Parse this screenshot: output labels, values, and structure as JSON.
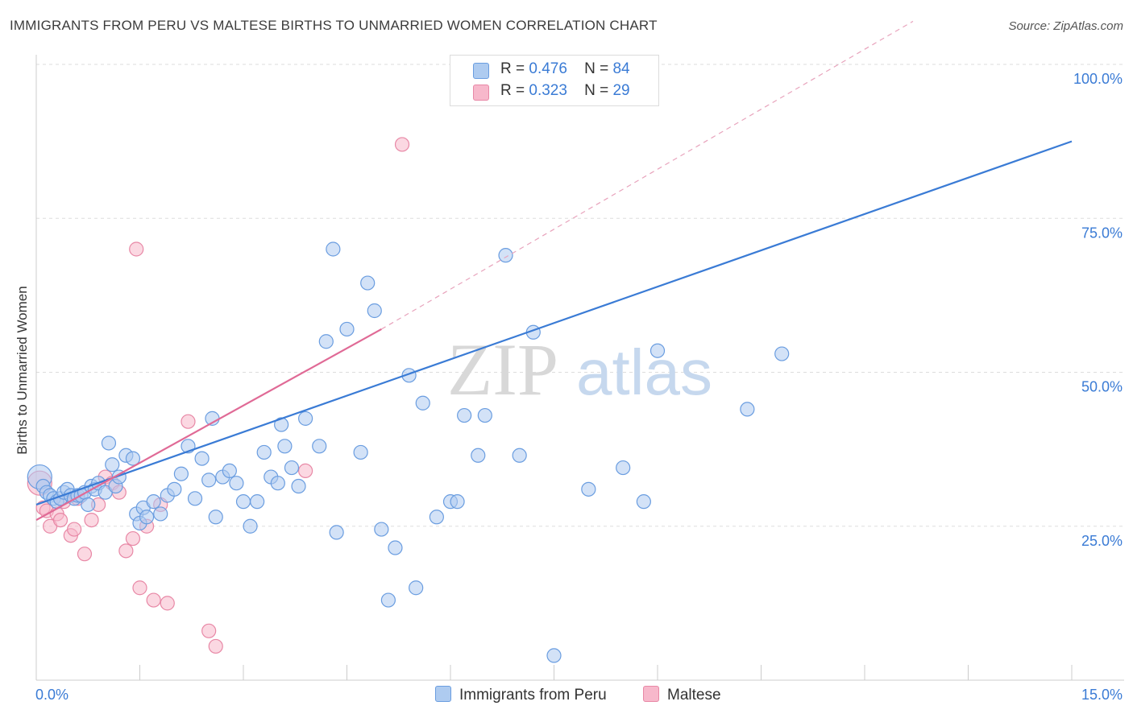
{
  "title": "IMMIGRANTS FROM PERU VS MALTESE BIRTHS TO UNMARRIED WOMEN CORRELATION CHART",
  "source": "Source: ZipAtlas.com",
  "watermark": {
    "part1": "ZIP",
    "part2": "atlas"
  },
  "legend": {
    "rows": [
      {
        "r_label": "R =",
        "r_value": "0.476",
        "n_label": "N =",
        "n_value": "84"
      },
      {
        "r_label": "R =",
        "r_value": "0.323",
        "n_label": "N =",
        "n_value": "29"
      }
    ]
  },
  "bottom_legend": {
    "series1": "Immigrants from Peru",
    "series2": "Maltese"
  },
  "colors": {
    "blue_fill": "#aecbf0",
    "blue_stroke": "#6a9de0",
    "blue_line": "#3a7bd5",
    "pink_fill": "#f7b8cb",
    "pink_stroke": "#e888a6",
    "pink_line": "#e06a96",
    "grid": "#dddddd",
    "tick_text": "#3a7bd5"
  },
  "chart_data": {
    "type": "scatter",
    "title": "IMMIGRANTS FROM PERU VS MALTESE BIRTHS TO UNMARRIED WOMEN CORRELATION CHART",
    "xlabel": "",
    "ylabel": "Births to Unmarried Women",
    "xlim": [
      0,
      15
    ],
    "ylim": [
      0,
      100
    ],
    "x_tick_labels": [
      "0.0%",
      "15.0%"
    ],
    "y_ticks": [
      25,
      50,
      75,
      100
    ],
    "y_tick_labels": [
      "25.0%",
      "50.0%",
      "75.0%",
      "100.0%"
    ],
    "grid": true,
    "legend_position": "top-center",
    "series": [
      {
        "name": "Immigrants from Peru",
        "r": 0.476,
        "n": 84,
        "trend": {
          "x": [
            0,
            15
          ],
          "y": [
            28.5,
            87.5
          ]
        },
        "points": [
          [
            0.05,
            33.0
          ],
          [
            0.1,
            31.5
          ],
          [
            0.15,
            30.5
          ],
          [
            0.2,
            30.0
          ],
          [
            0.25,
            29.5
          ],
          [
            0.3,
            29.0
          ],
          [
            0.35,
            29.5
          ],
          [
            0.4,
            30.5
          ],
          [
            0.45,
            31.0
          ],
          [
            0.5,
            30.0
          ],
          [
            0.55,
            29.5
          ],
          [
            0.6,
            30.0
          ],
          [
            0.65,
            30.0
          ],
          [
            0.7,
            30.5
          ],
          [
            0.75,
            28.5
          ],
          [
            0.8,
            31.5
          ],
          [
            0.85,
            31.0
          ],
          [
            0.9,
            32.0
          ],
          [
            1.0,
            30.5
          ],
          [
            1.05,
            38.5
          ],
          [
            1.1,
            35.0
          ],
          [
            1.15,
            31.5
          ],
          [
            1.2,
            33.0
          ],
          [
            1.3,
            36.5
          ],
          [
            1.4,
            36.0
          ],
          [
            1.45,
            27.0
          ],
          [
            1.5,
            25.5
          ],
          [
            1.55,
            28.0
          ],
          [
            1.6,
            26.5
          ],
          [
            1.7,
            29.0
          ],
          [
            1.8,
            27.0
          ],
          [
            1.9,
            30.0
          ],
          [
            2.0,
            31.0
          ],
          [
            2.1,
            33.5
          ],
          [
            2.2,
            38.0
          ],
          [
            2.3,
            29.5
          ],
          [
            2.4,
            36.0
          ],
          [
            2.5,
            32.5
          ],
          [
            2.55,
            42.5
          ],
          [
            2.6,
            26.5
          ],
          [
            2.7,
            33.0
          ],
          [
            2.8,
            34.0
          ],
          [
            2.9,
            32.0
          ],
          [
            3.0,
            29.0
          ],
          [
            3.1,
            25.0
          ],
          [
            3.2,
            29.0
          ],
          [
            3.3,
            37.0
          ],
          [
            3.4,
            33.0
          ],
          [
            3.5,
            32.0
          ],
          [
            3.55,
            41.5
          ],
          [
            3.6,
            38.0
          ],
          [
            3.7,
            34.5
          ],
          [
            3.8,
            31.5
          ],
          [
            3.9,
            42.5
          ],
          [
            4.1,
            38.0
          ],
          [
            4.2,
            55.0
          ],
          [
            4.3,
            70.0
          ],
          [
            4.35,
            24.0
          ],
          [
            4.5,
            57.0
          ],
          [
            4.7,
            37.0
          ],
          [
            4.8,
            64.5
          ],
          [
            4.9,
            60.0
          ],
          [
            5.0,
            24.5
          ],
          [
            5.1,
            13.0
          ],
          [
            5.2,
            21.5
          ],
          [
            5.4,
            49.5
          ],
          [
            5.5,
            15.0
          ],
          [
            5.6,
            45.0
          ],
          [
            5.8,
            26.5
          ],
          [
            6.0,
            29.0
          ],
          [
            6.1,
            29.0
          ],
          [
            6.2,
            43.0
          ],
          [
            6.4,
            36.5
          ],
          [
            6.5,
            43.0
          ],
          [
            6.8,
            69.0
          ],
          [
            7.0,
            36.5
          ],
          [
            7.2,
            56.5
          ],
          [
            7.5,
            4.0
          ],
          [
            8.0,
            31.0
          ],
          [
            8.5,
            34.5
          ],
          [
            8.8,
            29.0
          ],
          [
            9.0,
            53.5
          ],
          [
            10.3,
            44.0
          ],
          [
            10.8,
            53.0
          ]
        ]
      },
      {
        "name": "Maltese",
        "r": 0.323,
        "n": 29,
        "trend": {
          "x": [
            0,
            5.0
          ],
          "y": [
            26.0,
            57.0
          ]
        },
        "trend_extension": {
          "x": [
            5.0,
            12.7
          ],
          "y": [
            57.0,
            107.0
          ]
        },
        "points": [
          [
            0.05,
            32.0
          ],
          [
            0.1,
            28.0
          ],
          [
            0.15,
            27.5
          ],
          [
            0.2,
            25.0
          ],
          [
            0.3,
            27.0
          ],
          [
            0.35,
            26.0
          ],
          [
            0.4,
            29.0
          ],
          [
            0.5,
            23.5
          ],
          [
            0.55,
            24.5
          ],
          [
            0.6,
            29.5
          ],
          [
            0.7,
            20.5
          ],
          [
            0.8,
            26.0
          ],
          [
            0.9,
            28.5
          ],
          [
            1.0,
            33.0
          ],
          [
            1.1,
            32.0
          ],
          [
            1.2,
            30.5
          ],
          [
            1.3,
            21.0
          ],
          [
            1.4,
            23.0
          ],
          [
            1.45,
            70.0
          ],
          [
            1.5,
            15.0
          ],
          [
            1.6,
            25.0
          ],
          [
            1.7,
            13.0
          ],
          [
            1.8,
            28.5
          ],
          [
            1.9,
            12.5
          ],
          [
            2.2,
            42.0
          ],
          [
            2.5,
            8.0
          ],
          [
            2.6,
            5.5
          ],
          [
            3.9,
            34.0
          ],
          [
            5.3,
            87.0
          ]
        ]
      }
    ]
  }
}
